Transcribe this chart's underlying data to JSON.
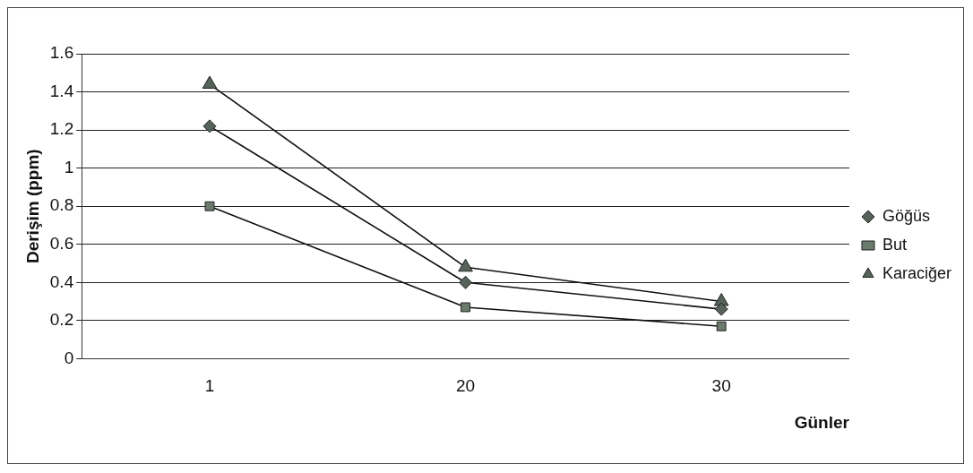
{
  "chart_data": {
    "type": "line",
    "categories": [
      "1",
      "20",
      "30"
    ],
    "xlabel": "Günler",
    "ylabel": "Derişim (ppm)",
    "series": [
      {
        "name": "Göğüs",
        "color": "#56635a",
        "marker": "diamond",
        "values": [
          1.22,
          0.4,
          0.26
        ]
      },
      {
        "name": "But",
        "color": "#6a7a6c",
        "marker": "square",
        "values": [
          0.8,
          0.27,
          0.17
        ]
      },
      {
        "name": "Karaciğer",
        "color": "#56635a",
        "marker": "triangle",
        "values": [
          1.44,
          0.48,
          0.3
        ]
      }
    ],
    "ylim": [
      0,
      1.6
    ],
    "yticks": [
      0,
      0.2,
      0.4,
      0.6,
      0.8,
      1,
      1.2,
      1.4,
      1.6
    ],
    "grid": "y",
    "legend": "right"
  }
}
